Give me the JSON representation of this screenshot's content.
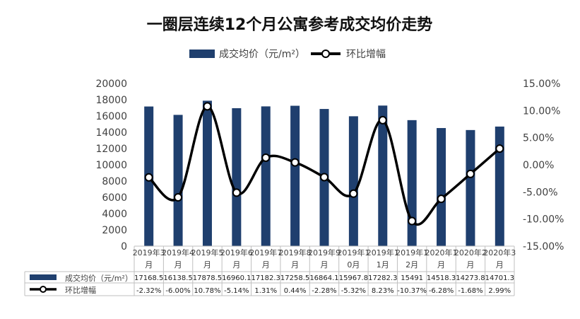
{
  "chart_data": {
    "type": "bar+line",
    "title": "一圈层连续12个月公寓参考成交均价走势",
    "categories": [
      [
        "2019年3",
        "月"
      ],
      [
        "2019年4",
        "月"
      ],
      [
        "2019年5",
        "月"
      ],
      [
        "2019年6",
        "月"
      ],
      [
        "2019年7",
        "月"
      ],
      [
        "2019年8",
        "月"
      ],
      [
        "2019年9",
        "月"
      ],
      [
        "2019年1",
        "0月"
      ],
      [
        "2019年1",
        "1月"
      ],
      [
        "2019年1",
        "2月"
      ],
      [
        "2020年1",
        "月"
      ],
      [
        "2020年2",
        "月"
      ],
      [
        "2020年3",
        "月"
      ]
    ],
    "series": [
      {
        "name": "成交均价（元/m²）",
        "type": "bar",
        "axis": "left",
        "color": "#1f3f6e",
        "values": [
          17168.5,
          16138.5,
          17878.5,
          16960.1,
          17182.3,
          17258.5,
          16864.1,
          15967.8,
          17282.3,
          15491,
          14518.3,
          14273.8,
          14701.3
        ],
        "labels": [
          "17168.5",
          "16138.5",
          "17878.5",
          "16960.1",
          "17182.3",
          "17258.5",
          "16864.1",
          "15967.8",
          "17282.3",
          "15491",
          "14518.3",
          "14273.8",
          "14701.3"
        ]
      },
      {
        "name": "环比增幅",
        "type": "line",
        "axis": "right",
        "color": "#000000",
        "values": [
          -2.32,
          -6.0,
          10.78,
          -5.14,
          1.31,
          0.44,
          -2.28,
          -5.32,
          8.23,
          -10.37,
          -6.28,
          -1.68,
          2.99
        ],
        "labels": [
          "-2.32%",
          "-6.00%",
          "10.78%",
          "-5.14%",
          "1.31%",
          "0.44%",
          "-2.28%",
          "-5.32%",
          "8.23%",
          "-10.37%",
          "-6.28%",
          "-1.68%",
          "2.99%"
        ]
      }
    ],
    "y_left": {
      "min": 0,
      "max": 20000,
      "step": 2000,
      "tick_labels": [
        "0",
        "2000",
        "4000",
        "6000",
        "8000",
        "10000",
        "12000",
        "14000",
        "16000",
        "18000",
        "20000"
      ]
    },
    "y_right": {
      "min": -15,
      "max": 15,
      "step": 5,
      "tick_labels": [
        "-15.00%",
        "-10.00%",
        "-5.00%",
        "0.00%",
        "5.00%",
        "10.00%",
        "15.00%"
      ]
    },
    "legend_position": "top",
    "data_table": true,
    "grid": false
  }
}
